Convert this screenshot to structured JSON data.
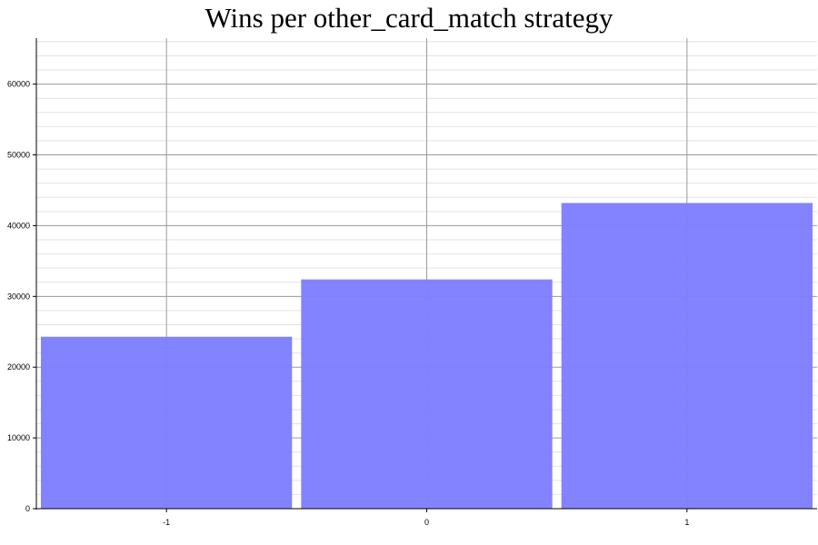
{
  "chart_data": {
    "type": "bar",
    "title": "Wins per other_card_match strategy",
    "xlabel": "",
    "ylabel": "",
    "categories": [
      "-1",
      "0",
      "1"
    ],
    "values": [
      24300,
      32400,
      43200
    ],
    "ylim": [
      0,
      66500
    ],
    "yticks": [
      0,
      10000,
      20000,
      30000,
      40000,
      50000,
      60000
    ],
    "grid": true,
    "legend": "none",
    "colors": {
      "bar": "#7f7fff",
      "grid_major": "#9a9a9a",
      "grid_minor": "#e2e2e2"
    }
  }
}
